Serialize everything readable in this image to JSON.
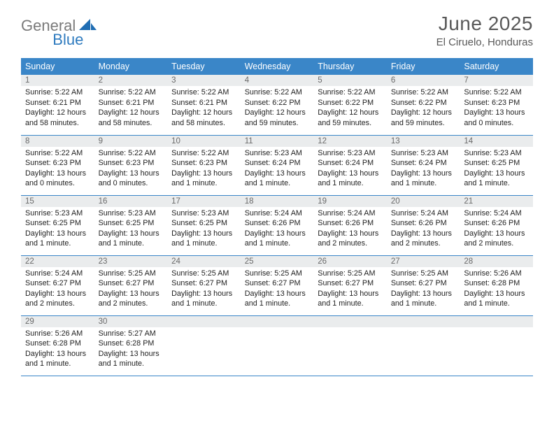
{
  "brand": {
    "word1": "General",
    "word2": "Blue",
    "color_gray": "#7a7a7a",
    "color_blue": "#2f7bbf",
    "logo_fill": "#1f6db3"
  },
  "title": "June 2025",
  "location": "El Ciruelo, Honduras",
  "colors": {
    "header_bg": "#3a86c8",
    "header_fg": "#ffffff",
    "daynum_bg": "#eaeced",
    "daynum_fg": "#6a6a6a",
    "text": "#222222",
    "row_border": "#3a86c8",
    "page_bg": "#ffffff",
    "title_color": "#595959"
  },
  "typography": {
    "title_fontsize": 28,
    "location_fontsize": 15,
    "header_fontsize": 12.5,
    "daynum_fontsize": 11.5,
    "cell_fontsize": 10.8
  },
  "day_headers": [
    "Sunday",
    "Monday",
    "Tuesday",
    "Wednesday",
    "Thursday",
    "Friday",
    "Saturday"
  ],
  "weeks": [
    [
      {
        "n": "1",
        "sr": "Sunrise: 5:22 AM",
        "ss": "Sunset: 6:21 PM",
        "dl": "Daylight: 12 hours and 58 minutes."
      },
      {
        "n": "2",
        "sr": "Sunrise: 5:22 AM",
        "ss": "Sunset: 6:21 PM",
        "dl": "Daylight: 12 hours and 58 minutes."
      },
      {
        "n": "3",
        "sr": "Sunrise: 5:22 AM",
        "ss": "Sunset: 6:21 PM",
        "dl": "Daylight: 12 hours and 58 minutes."
      },
      {
        "n": "4",
        "sr": "Sunrise: 5:22 AM",
        "ss": "Sunset: 6:22 PM",
        "dl": "Daylight: 12 hours and 59 minutes."
      },
      {
        "n": "5",
        "sr": "Sunrise: 5:22 AM",
        "ss": "Sunset: 6:22 PM",
        "dl": "Daylight: 12 hours and 59 minutes."
      },
      {
        "n": "6",
        "sr": "Sunrise: 5:22 AM",
        "ss": "Sunset: 6:22 PM",
        "dl": "Daylight: 12 hours and 59 minutes."
      },
      {
        "n": "7",
        "sr": "Sunrise: 5:22 AM",
        "ss": "Sunset: 6:23 PM",
        "dl": "Daylight: 13 hours and 0 minutes."
      }
    ],
    [
      {
        "n": "8",
        "sr": "Sunrise: 5:22 AM",
        "ss": "Sunset: 6:23 PM",
        "dl": "Daylight: 13 hours and 0 minutes."
      },
      {
        "n": "9",
        "sr": "Sunrise: 5:22 AM",
        "ss": "Sunset: 6:23 PM",
        "dl": "Daylight: 13 hours and 0 minutes."
      },
      {
        "n": "10",
        "sr": "Sunrise: 5:22 AM",
        "ss": "Sunset: 6:23 PM",
        "dl": "Daylight: 13 hours and 1 minute."
      },
      {
        "n": "11",
        "sr": "Sunrise: 5:23 AM",
        "ss": "Sunset: 6:24 PM",
        "dl": "Daylight: 13 hours and 1 minute."
      },
      {
        "n": "12",
        "sr": "Sunrise: 5:23 AM",
        "ss": "Sunset: 6:24 PM",
        "dl": "Daylight: 13 hours and 1 minute."
      },
      {
        "n": "13",
        "sr": "Sunrise: 5:23 AM",
        "ss": "Sunset: 6:24 PM",
        "dl": "Daylight: 13 hours and 1 minute."
      },
      {
        "n": "14",
        "sr": "Sunrise: 5:23 AM",
        "ss": "Sunset: 6:25 PM",
        "dl": "Daylight: 13 hours and 1 minute."
      }
    ],
    [
      {
        "n": "15",
        "sr": "Sunrise: 5:23 AM",
        "ss": "Sunset: 6:25 PM",
        "dl": "Daylight: 13 hours and 1 minute."
      },
      {
        "n": "16",
        "sr": "Sunrise: 5:23 AM",
        "ss": "Sunset: 6:25 PM",
        "dl": "Daylight: 13 hours and 1 minute."
      },
      {
        "n": "17",
        "sr": "Sunrise: 5:23 AM",
        "ss": "Sunset: 6:25 PM",
        "dl": "Daylight: 13 hours and 1 minute."
      },
      {
        "n": "18",
        "sr": "Sunrise: 5:24 AM",
        "ss": "Sunset: 6:26 PM",
        "dl": "Daylight: 13 hours and 1 minute."
      },
      {
        "n": "19",
        "sr": "Sunrise: 5:24 AM",
        "ss": "Sunset: 6:26 PM",
        "dl": "Daylight: 13 hours and 2 minutes."
      },
      {
        "n": "20",
        "sr": "Sunrise: 5:24 AM",
        "ss": "Sunset: 6:26 PM",
        "dl": "Daylight: 13 hours and 2 minutes."
      },
      {
        "n": "21",
        "sr": "Sunrise: 5:24 AM",
        "ss": "Sunset: 6:26 PM",
        "dl": "Daylight: 13 hours and 2 minutes."
      }
    ],
    [
      {
        "n": "22",
        "sr": "Sunrise: 5:24 AM",
        "ss": "Sunset: 6:27 PM",
        "dl": "Daylight: 13 hours and 2 minutes."
      },
      {
        "n": "23",
        "sr": "Sunrise: 5:25 AM",
        "ss": "Sunset: 6:27 PM",
        "dl": "Daylight: 13 hours and 2 minutes."
      },
      {
        "n": "24",
        "sr": "Sunrise: 5:25 AM",
        "ss": "Sunset: 6:27 PM",
        "dl": "Daylight: 13 hours and 1 minute."
      },
      {
        "n": "25",
        "sr": "Sunrise: 5:25 AM",
        "ss": "Sunset: 6:27 PM",
        "dl": "Daylight: 13 hours and 1 minute."
      },
      {
        "n": "26",
        "sr": "Sunrise: 5:25 AM",
        "ss": "Sunset: 6:27 PM",
        "dl": "Daylight: 13 hours and 1 minute."
      },
      {
        "n": "27",
        "sr": "Sunrise: 5:25 AM",
        "ss": "Sunset: 6:27 PM",
        "dl": "Daylight: 13 hours and 1 minute."
      },
      {
        "n": "28",
        "sr": "Sunrise: 5:26 AM",
        "ss": "Sunset: 6:28 PM",
        "dl": "Daylight: 13 hours and 1 minute."
      }
    ],
    [
      {
        "n": "29",
        "sr": "Sunrise: 5:26 AM",
        "ss": "Sunset: 6:28 PM",
        "dl": "Daylight: 13 hours and 1 minute."
      },
      {
        "n": "30",
        "sr": "Sunrise: 5:27 AM",
        "ss": "Sunset: 6:28 PM",
        "dl": "Daylight: 13 hours and 1 minute."
      },
      null,
      null,
      null,
      null,
      null
    ]
  ]
}
